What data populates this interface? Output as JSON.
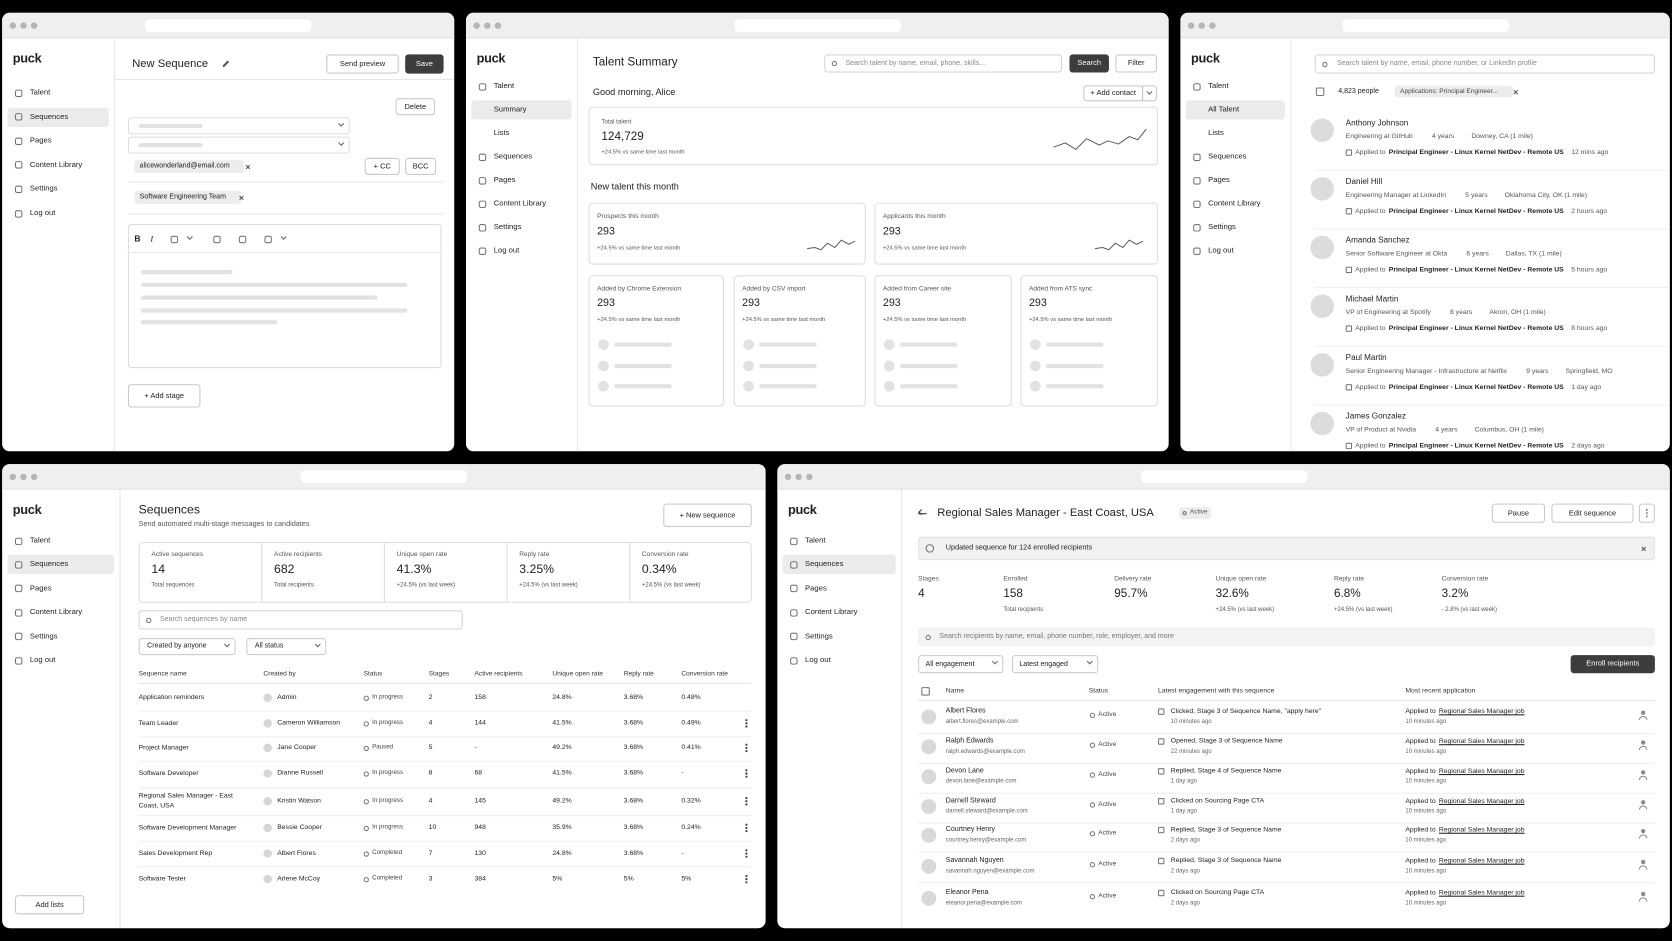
{
  "new_sequence": {
    "sidebar": {
      "logo": "puck",
      "nav": [
        "Talent",
        "Sequences",
        "Pages",
        "Content Library",
        "Settings",
        "Log out"
      ]
    },
    "title": "New Sequence",
    "send_preview": "Send preview",
    "save": "Save",
    "delete": "Delete",
    "email_chip": "alicewonderland@email.com",
    "cc": "+ CC",
    "bcc": "BCC",
    "team_chip": "Software Engineering Team",
    "toolbar": [
      "B",
      "I"
    ],
    "add_stage": "+ Add stage"
  },
  "talent_summary": {
    "sidebar": {
      "logo": "puck",
      "nav": [
        "Talent",
        "Summary",
        "Lists",
        "Sequences",
        "Pages",
        "Content Library",
        "Settings",
        "Log out"
      ]
    },
    "title": "Talent Summary",
    "search_placeholder": "Search talent by name, email, phone, skills...",
    "search": "Search",
    "filter": "Filter",
    "greeting": "Good morning, Alice",
    "add_contact": "+ Add contact",
    "total": {
      "label": "Total talent",
      "value": "124,729",
      "change": "+24.5% vs same time last month"
    },
    "section": "New talent this month",
    "cards": [
      {
        "label": "Prospects this month",
        "value": "293",
        "change": "+24.5% vs same time last month"
      },
      {
        "label": "Applicants this month",
        "value": "293",
        "change": "+24.5% vs same time last month"
      }
    ],
    "sources": [
      {
        "label": "Added by Chrome Extension",
        "value": "293",
        "change": "+24.5% vs same time last month"
      },
      {
        "label": "Added by CSV import",
        "value": "293",
        "change": "+24.5% vs same time last month"
      },
      {
        "label": "Added from Career site",
        "value": "293",
        "change": "+24.5% vs same time last month"
      },
      {
        "label": "Added from ATS sync",
        "value": "293",
        "change": "+24.5% vs same time last month"
      }
    ]
  },
  "talent_search": {
    "sidebar": {
      "logo": "puck",
      "nav": [
        "Talent",
        "All Talent",
        "Lists",
        "Sequences",
        "Pages",
        "Content Library",
        "Settings",
        "Log out"
      ]
    },
    "search_placeholder": "Search talent by name, email, phone number, or LinkedIn profile",
    "count": "4,823 people",
    "filter_chip": "Applications: Principal Engineer...",
    "applied_label": "Applied to",
    "people": [
      {
        "name": "Anthony Johnson",
        "role": "Engineering at GitHub",
        "experience": "4 years",
        "location": "Downey, CA (1 mile)",
        "job": "Principal Engineer - Linux Kernel NetDev - Remote US",
        "time": "12 mins ago"
      },
      {
        "name": "Daniel Hill",
        "role": "Engineering Manager at LinkedIn",
        "experience": "5 years",
        "location": "Oklahoma City, OK (1 mile)",
        "job": "Principal Engineer - Linux Kernel NetDev - Remote US",
        "time": "2 hours ago"
      },
      {
        "name": "Amanda Sanchez",
        "role": "Senior Software Engineer at Okta",
        "experience": "6 years",
        "location": "Dallas, TX (1 mile)",
        "job": "Principal Engineer - Linux Kernel NetDev - Remote US",
        "time": "5 hours ago"
      },
      {
        "name": "Michael Martin",
        "role": "VP of Engineering at Spotify",
        "experience": "8 years",
        "location": "Akron, OH (1 mile)",
        "job": "Principal Engineer - Linux Kernel NetDev - Remote US",
        "time": "8 hours ago"
      },
      {
        "name": "Paul Martin",
        "role": "Senior Engineering Manager - Infrastructure at Netflix",
        "experience": "9 years",
        "location": "Springfield, MO",
        "job": "Principal Engineer - Linux Kernel NetDev - Remote US",
        "time": "1 day ago"
      },
      {
        "name": "James Gonzalez",
        "role": "VP of Product at Nvidia",
        "experience": "4 years",
        "location": "Columbus, OH (1 mile)",
        "job": "Principal Engineer - Linux Kernel NetDev - Remote US",
        "time": "2 days ago"
      }
    ]
  },
  "sequences": {
    "sidebar": {
      "logo": "puck",
      "nav": [
        "Talent",
        "Sequences",
        "Pages",
        "Content Library",
        "Settings",
        "Log out"
      ],
      "add_lists": "Add lists"
    },
    "title": "Sequences",
    "subtitle": "Send automated multi-stage messages to candidates",
    "new_sequence": "+ New sequence",
    "stats": [
      {
        "label": "Active sequences",
        "value": "14",
        "sub": "Total sequences"
      },
      {
        "label": "Active recipients",
        "value": "682",
        "sub": "Total recipients"
      },
      {
        "label": "Unique open rate",
        "value": "41.3%",
        "sub": "+24.5% (vs last week)"
      },
      {
        "label": "Reply rate",
        "value": "3.25%",
        "sub": "+24.5% (vs last week)"
      },
      {
        "label": "Conversion rate",
        "value": "0.34%",
        "sub": "+24.5% (vs last week)"
      }
    ],
    "search_placeholder": "Search sequences by name",
    "filters": [
      "Created by anyone",
      "All status"
    ],
    "table": {
      "columns": [
        "Sequence name",
        "Created by",
        "Status",
        "Stages",
        "Active recipients",
        "Unique open rate",
        "Reply rate",
        "Conversion rate"
      ],
      "rows": [
        [
          "Application reminders",
          "Admin",
          "In progress",
          "2",
          "158",
          "24.8%",
          "3.68%",
          "0.48%"
        ],
        [
          "Team Leader",
          "Cameron Williamson",
          "In progress",
          "4",
          "144",
          "41.5%",
          "3.68%",
          "0.49%"
        ],
        [
          "Project Manager",
          "Jane Cooper",
          "Paused",
          "5",
          "-",
          "49.2%",
          "3.68%",
          "0.41%"
        ],
        [
          "Software Developer",
          "Dianne Russell",
          "In progress",
          "8",
          "68",
          "41.5%",
          "3.68%",
          "-"
        ],
        [
          "Regional Sales Manager - East Coast, USA",
          "Kristin Watson",
          "In progress",
          "4",
          "145",
          "49.2%",
          "3.68%",
          "0.32%"
        ],
        [
          "Software Development Manager",
          "Bessie Cooper",
          "In progress",
          "10",
          "948",
          "35.9%",
          "3.68%",
          "0.24%"
        ],
        [
          "Sales Development Rep",
          "Albert Flores",
          "Completed",
          "7",
          "130",
          "24.8%",
          "3.68%",
          "-"
        ],
        [
          "Software Tester",
          "Arlene McCoy",
          "Completed",
          "3",
          "384",
          "5%",
          "5%",
          "5%"
        ]
      ]
    }
  },
  "sequence_detail": {
    "sidebar": {
      "logo": "puck",
      "nav": [
        "Talent",
        "Sequences",
        "Pages",
        "Content Library",
        "Settings",
        "Log out"
      ]
    },
    "title": "Regional Sales Manager - East Coast, USA",
    "badge": "Active",
    "pause": "Pause",
    "edit": "Edit sequence",
    "banner": "Updated sequence for 124 enrolled recipients",
    "stats": [
      {
        "label": "Stages",
        "value": "4"
      },
      {
        "label": "Enrolled",
        "value": "158",
        "sub": "Total recipients"
      },
      {
        "label": "Delivery rate",
        "value": "95.7%"
      },
      {
        "label": "Unique open rate",
        "value": "32.6%",
        "sub": "+24.5% (vs last week)"
      },
      {
        "label": "Reply rate",
        "value": "6.8%",
        "sub": "+24.5% (vs last week)"
      },
      {
        "label": "Conversion rate",
        "value": "3.2%",
        "sub": "- 2.8% (vs last week)"
      }
    ],
    "search_placeholder": "Search recipients by name, email, phone number, role, employer, and more",
    "filters": [
      "All engagement",
      "Latest engaged"
    ],
    "enroll": "Enroll recipients",
    "columns": [
      "Name",
      "Status",
      "Latest engagement with this sequence",
      "Most recent application"
    ],
    "application": {
      "prefix": "Applied to",
      "link": "Regional Sales Manager job",
      "time": "10 minutes ago"
    },
    "rows": [
      {
        "name": "Albert Flores",
        "email": "albert.flores@example.com",
        "status": "Active",
        "engagement": "Clicked, Stage 3 of Sequence Name, \"apply here\"",
        "time": "10 minutes ago"
      },
      {
        "name": "Ralph Edwards",
        "email": "ralph.edwards@example.com",
        "status": "Active",
        "engagement": "Opened, Stage 3 of Sequence Name",
        "time": "22 minutes ago"
      },
      {
        "name": "Devon Lane",
        "email": "devon.lane@example.com",
        "status": "Active",
        "engagement": "Replied, Stage 4 of Sequence Name",
        "time": "1 day ago"
      },
      {
        "name": "Darnell Steward",
        "email": "darnell.steward@example.com",
        "status": "Active",
        "engagement": "Clicked on Sourcing Page CTA",
        "time": "1 day ago"
      },
      {
        "name": "Courtney Henry",
        "email": "courtney.henry@example.com",
        "status": "Active",
        "engagement": "Replied, Stage 3 of Sequence Name",
        "time": "2 days ago"
      },
      {
        "name": "Savannah Nguyen",
        "email": "savannah.nguyen@example.com",
        "status": "Active",
        "engagement": "Replied, Stage 3 of Sequence Name",
        "time": "2 days ago"
      },
      {
        "name": "Eleanor Pena",
        "email": "eleanor.pena@example.com",
        "status": "Active",
        "engagement": "Clicked on Sourcing Page CTA",
        "time": "2 days ago"
      }
    ]
  }
}
